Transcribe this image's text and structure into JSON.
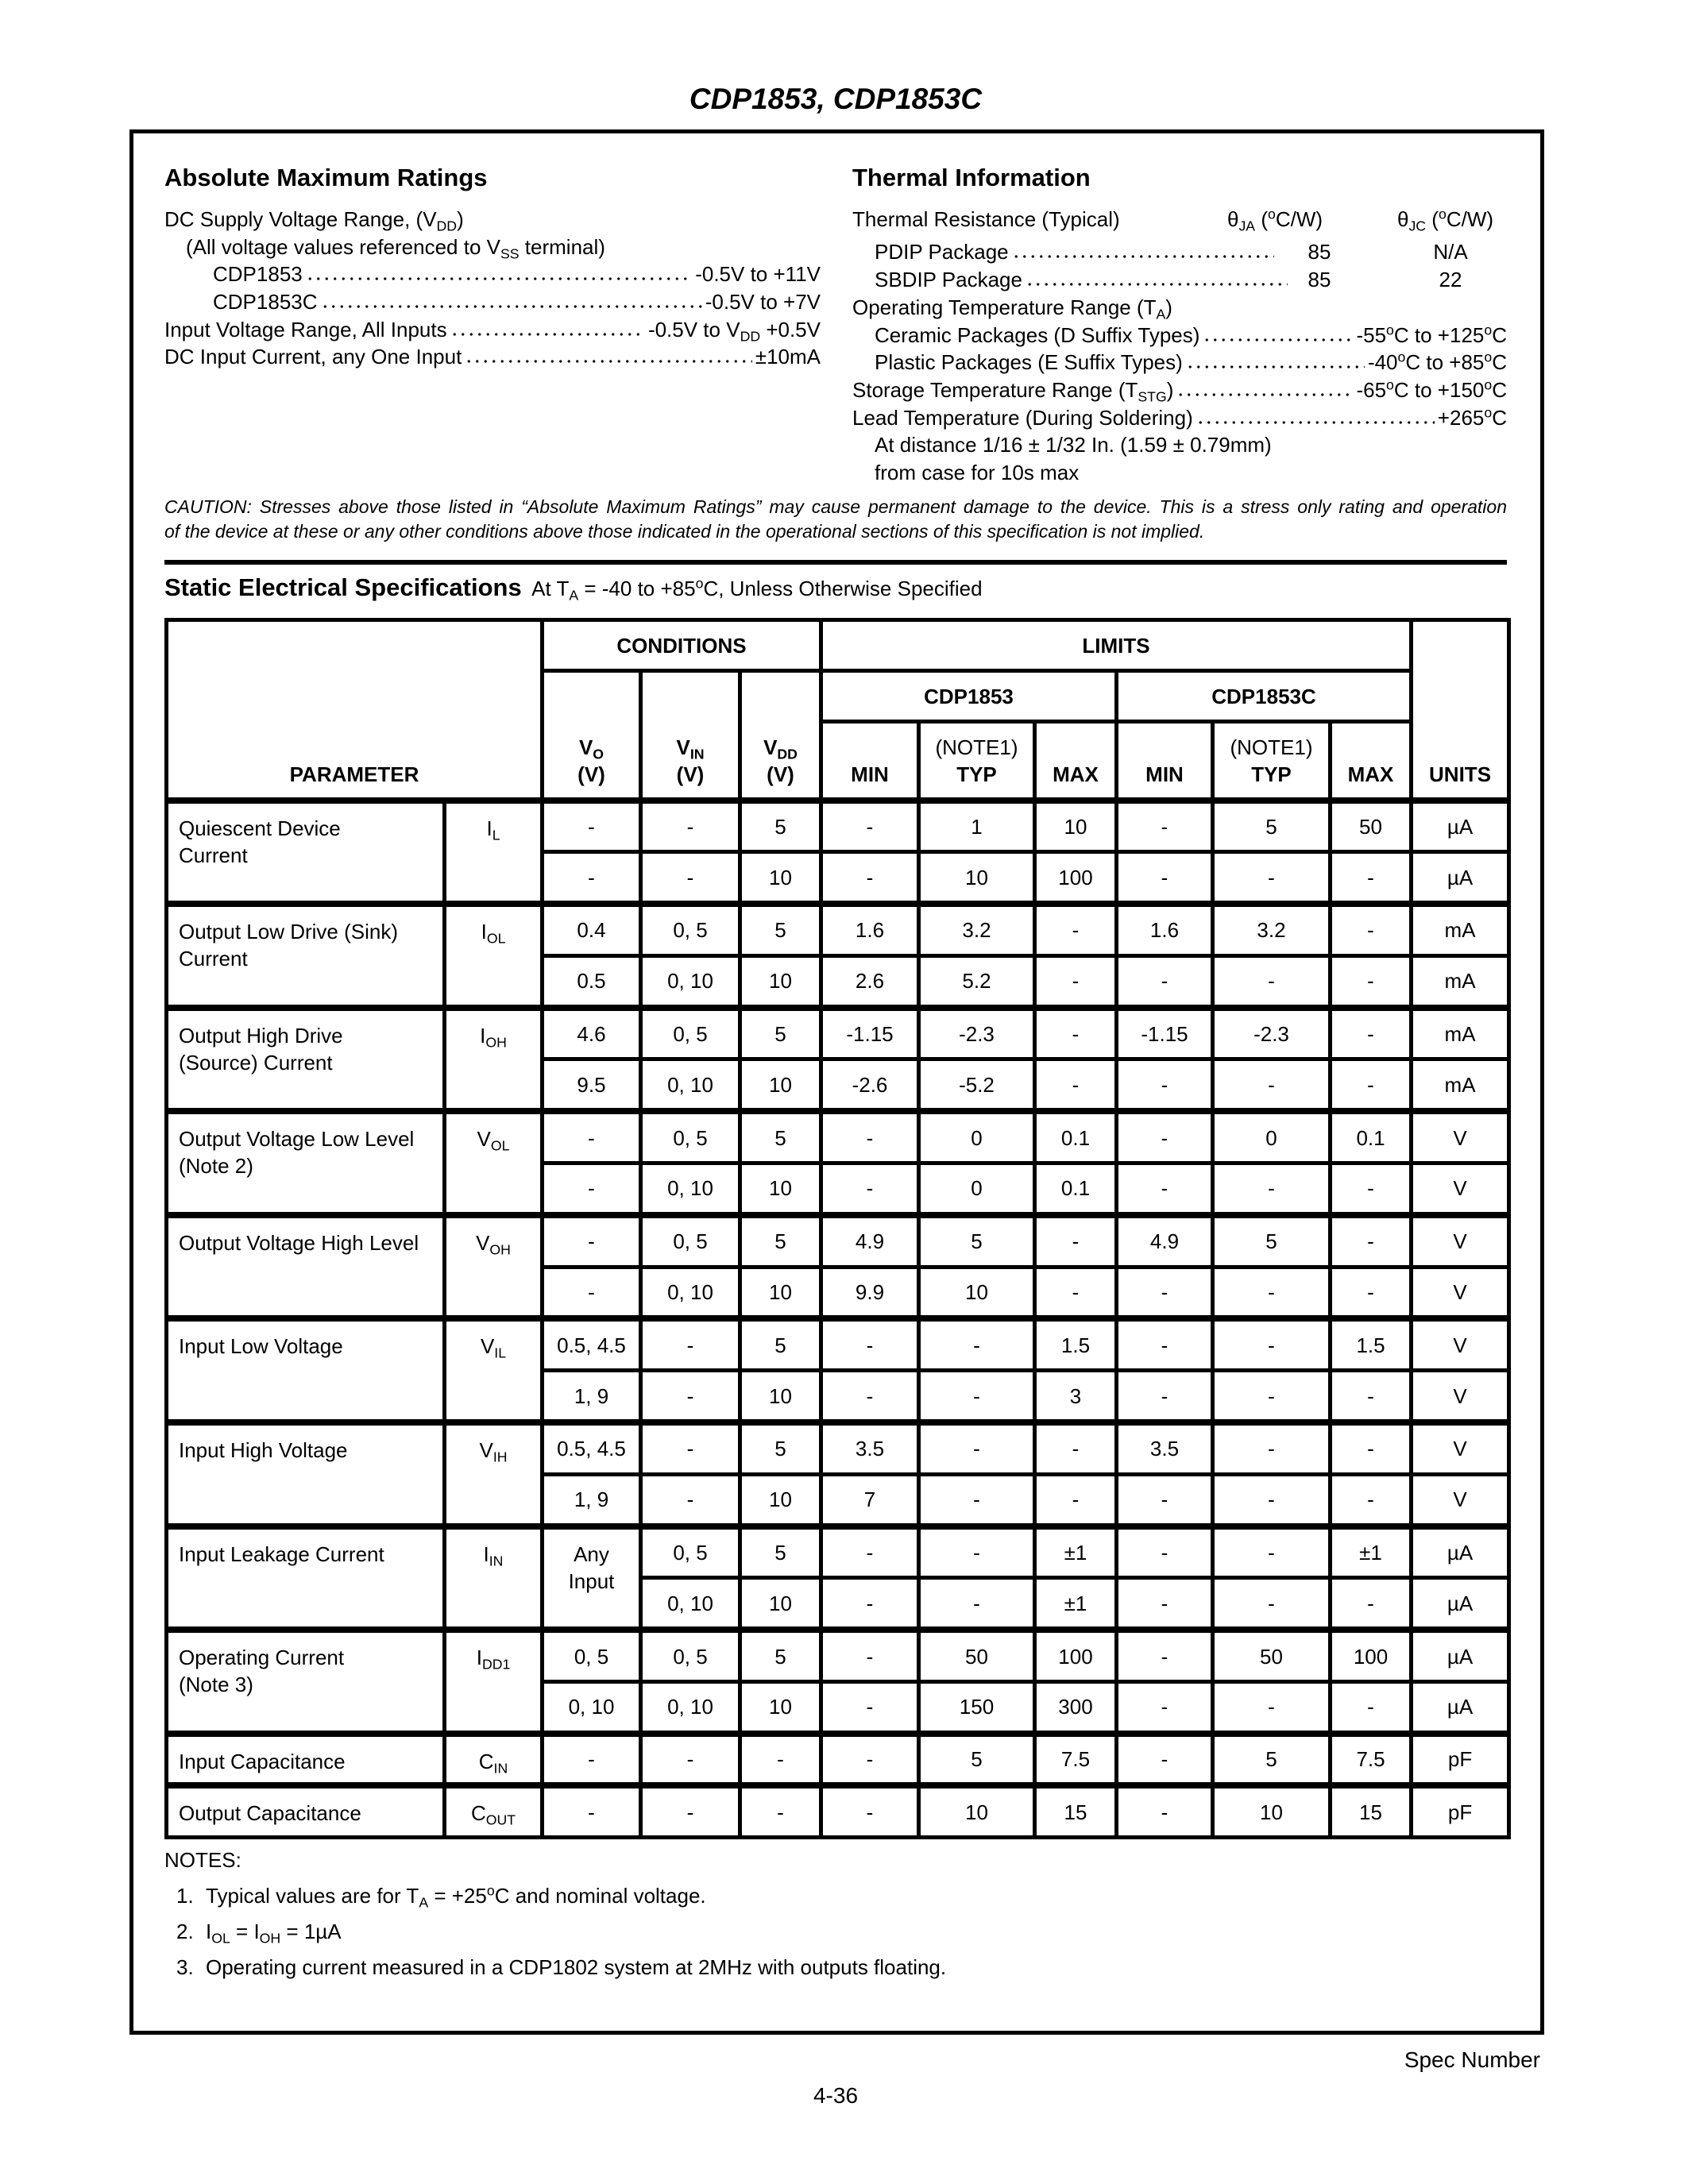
{
  "title": "CDP1853, CDP1853C",
  "abs_max": {
    "heading": "Absolute Maximum Ratings",
    "items": [
      {
        "label": "DC Supply Voltage Range, (V_{DD})",
        "value": "",
        "indent": 0
      },
      {
        "label": "(All voltage values referenced to V_{SS} terminal)",
        "value": "",
        "indent": 1
      },
      {
        "label": "CDP1853",
        "value": "-0.5V to +11V",
        "indent": 2
      },
      {
        "label": "CDP1853C",
        "value": "-0.5V to +7V",
        "indent": 2
      },
      {
        "label": "Input Voltage Range, All Inputs",
        "value": "-0.5V to V_{DD} +0.5V",
        "indent": 0
      },
      {
        "label": "DC Input Current, any One Input",
        "value": "±10mA",
        "indent": 0
      }
    ]
  },
  "thermal": {
    "heading": "Thermal Information",
    "resistance_label": "Thermal Resistance (Typical)",
    "col_ja": "θ_{JA} (^{o}C/W)",
    "col_jc": "θ_{JC} (^{o}C/W)",
    "packages": [
      {
        "label": "PDIP Package",
        "ja": "85",
        "jc": "N/A"
      },
      {
        "label": "SBDIP Package",
        "ja": "85",
        "jc": "22"
      }
    ],
    "items": [
      {
        "label": "Operating Temperature Range (T_{A})",
        "value": "",
        "indent": 0
      },
      {
        "label": "Ceramic Packages (D Suffix Types)",
        "value": "-55^{o}C to +125^{o}C",
        "indent": 1
      },
      {
        "label": "Plastic Packages (E Suffix Types)",
        "value": "-40^{o}C to +85^{o}C",
        "indent": 1
      },
      {
        "label": "Storage Temperature Range (T_{STG})",
        "value": "-65^{o}C to +150^{o}C",
        "indent": 0
      },
      {
        "label": "Lead Temperature (During Soldering)",
        "value": "+265^{o}C",
        "indent": 0
      },
      {
        "label": "At distance 1/16 ± 1/32 In. (1.59 ± 0.79mm)",
        "value": "",
        "indent": 1
      },
      {
        "label": "from case for 10s max",
        "value": "",
        "indent": 1
      }
    ]
  },
  "caution": [
    "CAUTION: Stresses above those listed in “Absolute Maximum Ratings” may cause permanent damage to the device. This is a stress only rating and operation",
    "of the device at these or any other conditions above those indicated in the operational sections of this specification is not implied."
  ],
  "static": {
    "heading": "Static Electrical Specifications",
    "subheading": "At T_{A} = -40 to +85^{o}C, Unless Otherwise Specified",
    "header": {
      "parameter": "PARAMETER",
      "conditions": "CONDITIONS",
      "limits": "LIMITS",
      "units": "UNITS",
      "vo": "V_{O}",
      "vin": "V_{IN}",
      "vdd": "V_{DD}",
      "volt_unit": "(V)",
      "part_a": "CDP1853",
      "part_b": "CDP1853C",
      "min": "MIN",
      "typ": "TYP",
      "max": "MAX",
      "note1": "(NOTE1)"
    },
    "groups": [
      {
        "param": [
          "Quiescent Device",
          "Current"
        ],
        "symbol": "I_{L}",
        "rows": [
          [
            "-",
            "-",
            "5",
            "-",
            "1",
            "10",
            "-",
            "5",
            "50",
            "µA"
          ],
          [
            "-",
            "-",
            "10",
            "-",
            "10",
            "100",
            "-",
            "-",
            "-",
            "µA"
          ]
        ]
      },
      {
        "param": [
          "Output Low Drive (Sink)",
          "Current"
        ],
        "symbol": "I_{OL}",
        "rows": [
          [
            "0.4",
            "0, 5",
            "5",
            "1.6",
            "3.2",
            "-",
            "1.6",
            "3.2",
            "-",
            "mA"
          ],
          [
            "0.5",
            "0, 10",
            "10",
            "2.6",
            "5.2",
            "-",
            "-",
            "-",
            "-",
            "mA"
          ]
        ]
      },
      {
        "param": [
          "Output High Drive",
          "(Source) Current"
        ],
        "symbol": "I_{OH}",
        "rows": [
          [
            "4.6",
            "0, 5",
            "5",
            "-1.15",
            "-2.3",
            "-",
            "-1.15",
            "-2.3",
            "-",
            "mA"
          ],
          [
            "9.5",
            "0, 10",
            "10",
            "-2.6",
            "-5.2",
            "-",
            "-",
            "-",
            "-",
            "mA"
          ]
        ]
      },
      {
        "param": [
          "Output Voltage Low Level",
          "(Note 2)"
        ],
        "symbol": "V_{OL}",
        "rows": [
          [
            "-",
            "0, 5",
            "5",
            "-",
            "0",
            "0.1",
            "-",
            "0",
            "0.1",
            "V"
          ],
          [
            "-",
            "0, 10",
            "10",
            "-",
            "0",
            "0.1",
            "-",
            "-",
            "-",
            "V"
          ]
        ]
      },
      {
        "param": [
          "Output Voltage High Level"
        ],
        "symbol": "V_{OH}",
        "rows": [
          [
            "-",
            "0, 5",
            "5",
            "4.9",
            "5",
            "-",
            "4.9",
            "5",
            "-",
            "V"
          ],
          [
            "-",
            "0, 10",
            "10",
            "9.9",
            "10",
            "-",
            "-",
            "-",
            "-",
            "V"
          ]
        ]
      },
      {
        "param": [
          "Input Low Voltage"
        ],
        "symbol": "V_{IL}",
        "rows": [
          [
            "0.5, 4.5",
            "-",
            "5",
            "-",
            "-",
            "1.5",
            "-",
            "-",
            "1.5",
            "V"
          ],
          [
            "1, 9",
            "-",
            "10",
            "-",
            "-",
            "3",
            "-",
            "-",
            "-",
            "V"
          ]
        ]
      },
      {
        "param": [
          "Input High Voltage"
        ],
        "symbol": "V_{IH}",
        "rows": [
          [
            "0.5, 4.5",
            "-",
            "5",
            "3.5",
            "-",
            "-",
            "3.5",
            "-",
            "-",
            "V"
          ],
          [
            "1, 9",
            "-",
            "10",
            "7",
            "-",
            "-",
            "-",
            "-",
            "-",
            "V"
          ]
        ]
      },
      {
        "param": [
          "Input Leakage Current"
        ],
        "symbol": "I_{IN}",
        "vo_merged": [
          "Any",
          "Input"
        ],
        "rows": [
          [
            "",
            "0, 5",
            "5",
            "-",
            "-",
            "±1",
            "-",
            "-",
            "±1",
            "µA"
          ],
          [
            "",
            "0, 10",
            "10",
            "-",
            "-",
            "±1",
            "-",
            "-",
            "-",
            "µA"
          ]
        ]
      },
      {
        "param": [
          "Operating Current",
          "(Note 3)"
        ],
        "symbol": "I_{DD1}",
        "rows": [
          [
            "0, 5",
            "0, 5",
            "5",
            "-",
            "50",
            "100",
            "-",
            "50",
            "100",
            "µA"
          ],
          [
            "0, 10",
            "0, 10",
            "10",
            "-",
            "150",
            "300",
            "-",
            "-",
            "-",
            "µA"
          ]
        ]
      },
      {
        "param": [
          "Input Capacitance"
        ],
        "symbol": "C_{IN}",
        "rows": [
          [
            "-",
            "-",
            "-",
            "-",
            "5",
            "7.5",
            "-",
            "5",
            "7.5",
            "pF"
          ]
        ]
      },
      {
        "param": [
          "Output Capacitance"
        ],
        "symbol": "C_{OUT}",
        "rows": [
          [
            "-",
            "-",
            "-",
            "-",
            "10",
            "15",
            "-",
            "10",
            "15",
            "pF"
          ]
        ]
      }
    ]
  },
  "notes": {
    "heading": "NOTES:",
    "items": [
      {
        "num": "1.",
        "text": "Typical values are for T_{A} = +25^{o}C and nominal voltage."
      },
      {
        "num": "2.",
        "text": "I_{OL} = I_{OH} = 1µA"
      },
      {
        "num": "3.",
        "text": "Operating current measured in a CDP1802 system at 2MHz with outputs floating."
      }
    ]
  },
  "footer": {
    "spec_number": "Spec Number",
    "page": "4-36"
  }
}
